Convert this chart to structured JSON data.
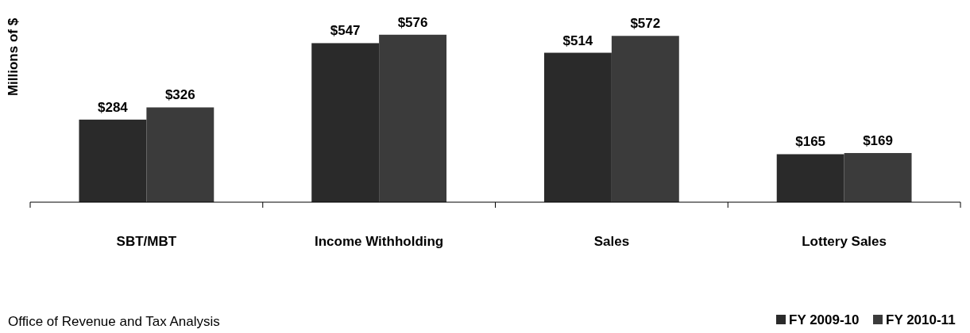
{
  "chart_data": {
    "type": "bar",
    "ylabel": "Millions of $",
    "categories": [
      "SBT/MBT",
      "Income Withholding",
      "Sales",
      "Lottery Sales"
    ],
    "series": [
      {
        "name": "FY 2009-10",
        "color": "#2a2a2a",
        "values": [
          284,
          547,
          514,
          165
        ],
        "value_labels": [
          "$284",
          "$547",
          "$514",
          "$165"
        ]
      },
      {
        "name": "FY 2010-11",
        "color": "#3b3b3b",
        "values": [
          326,
          576,
          572,
          169
        ],
        "value_labels": [
          "$326",
          "$576",
          "$572",
          "$169"
        ]
      }
    ],
    "annotations": [
      "Office of Revenue and Tax Analysis"
    ],
    "legend": "bottom right"
  }
}
